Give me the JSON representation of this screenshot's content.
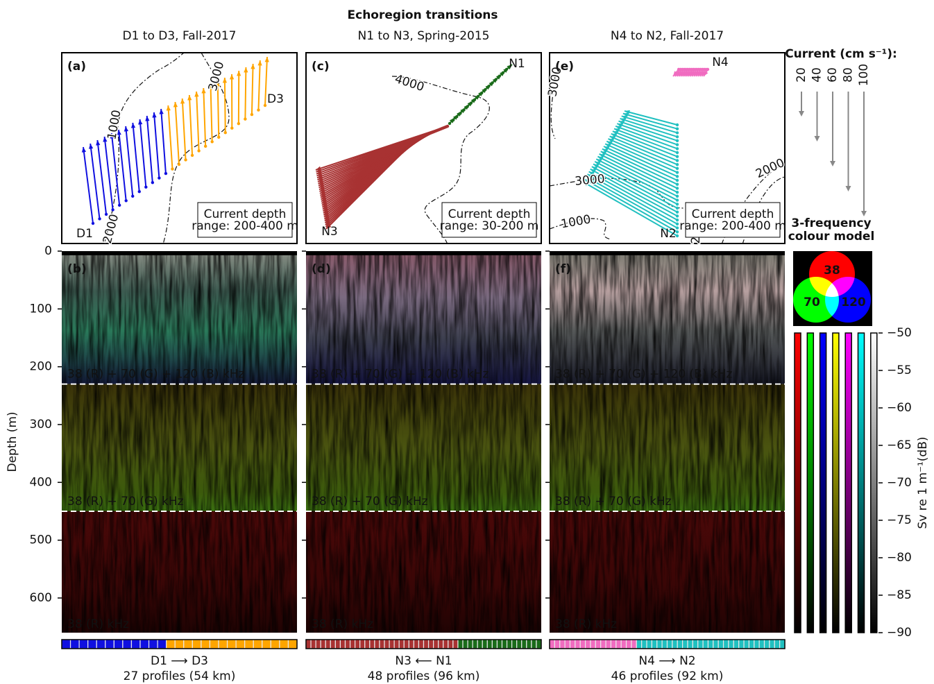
{
  "title": "Echoregion transitions",
  "columns": [
    {
      "title": "D1 to D3, Fall-2017",
      "map_label": "(a)",
      "echo_label": "(b)",
      "start": "D1",
      "end": "D3",
      "depth_note": [
        "Current depth",
        "range: 200-400 m"
      ],
      "contour_labels": [
        "1000",
        "3000",
        "2000"
      ],
      "transect": "D1 ⟶ D3",
      "profiles": "27 profiles (54 km)",
      "segments": [
        {
          "color": "#1010e0",
          "count": 12
        },
        {
          "color": "#ffa500",
          "count": 15
        }
      ]
    },
    {
      "title": "N1 to N3, Spring-2015",
      "map_label": "(c)",
      "echo_label": "(d)",
      "start": "N1",
      "end": "N3",
      "depth_note": [
        "Current depth",
        "range: 30-200 m"
      ],
      "contour_labels": [
        "4000"
      ],
      "transect": "N3 ⟵ N1",
      "profiles": "48 profiles (96 km)",
      "segments": [
        {
          "color": "#a83232",
          "count": 31
        },
        {
          "color": "#1a6b1a",
          "count": 17
        }
      ]
    },
    {
      "title": "N4 to N2, Fall-2017",
      "map_label": "(e)",
      "echo_label": "(f)",
      "start": "N4",
      "end": "N2",
      "depth_note": [
        "Current depth",
        "range: 200-400 m"
      ],
      "contour_labels": [
        "3000",
        "3000",
        "2000",
        "1000",
        "2000"
      ],
      "transect": "N4 ⟶ N2",
      "profiles": "46 profiles (92 km)",
      "segments": [
        {
          "color": "#f06cc0",
          "count": 17
        },
        {
          "color": "#20c0c0",
          "count": 29
        }
      ]
    }
  ],
  "layer_labels": [
    "38 (R) + 70 (G) + 120 (B) kHz",
    "38 (R) + 70 (G) kHz",
    "38 (R) kHz"
  ],
  "depth_axis": {
    "label": "Depth (m)",
    "lim": [
      0,
      660
    ],
    "ticks": [
      0,
      100,
      200,
      300,
      400,
      500,
      600
    ],
    "boundaries": [
      230,
      450
    ]
  },
  "current_legend": {
    "title": "Current (cm s⁻¹):",
    "speeds": [
      20,
      40,
      60,
      80,
      100
    ]
  },
  "color_model": {
    "title": [
      "3-frequency",
      "colour model"
    ],
    "labels": [
      "38",
      "70",
      "120"
    ]
  },
  "colorbar": {
    "label": "Sv re 1 m⁻¹(dB)",
    "lim": [
      -90,
      -50
    ],
    "ticks": [
      {
        "value": -50,
        "label": "−50"
      },
      {
        "value": -55,
        "label": "−55"
      },
      {
        "value": -60,
        "label": "−60"
      },
      {
        "value": -65,
        "label": "−65"
      },
      {
        "value": -70,
        "label": "−70"
      },
      {
        "value": -75,
        "label": "−75"
      },
      {
        "value": -80,
        "label": "−80"
      },
      {
        "value": -85,
        "label": "−85"
      },
      {
        "value": -90,
        "label": "−90"
      }
    ],
    "colors": [
      "#ff0000",
      "#00ff00",
      "#0000ff",
      "#ffff00",
      "#ff00ff",
      "#00ffff",
      "#ffffff"
    ]
  }
}
